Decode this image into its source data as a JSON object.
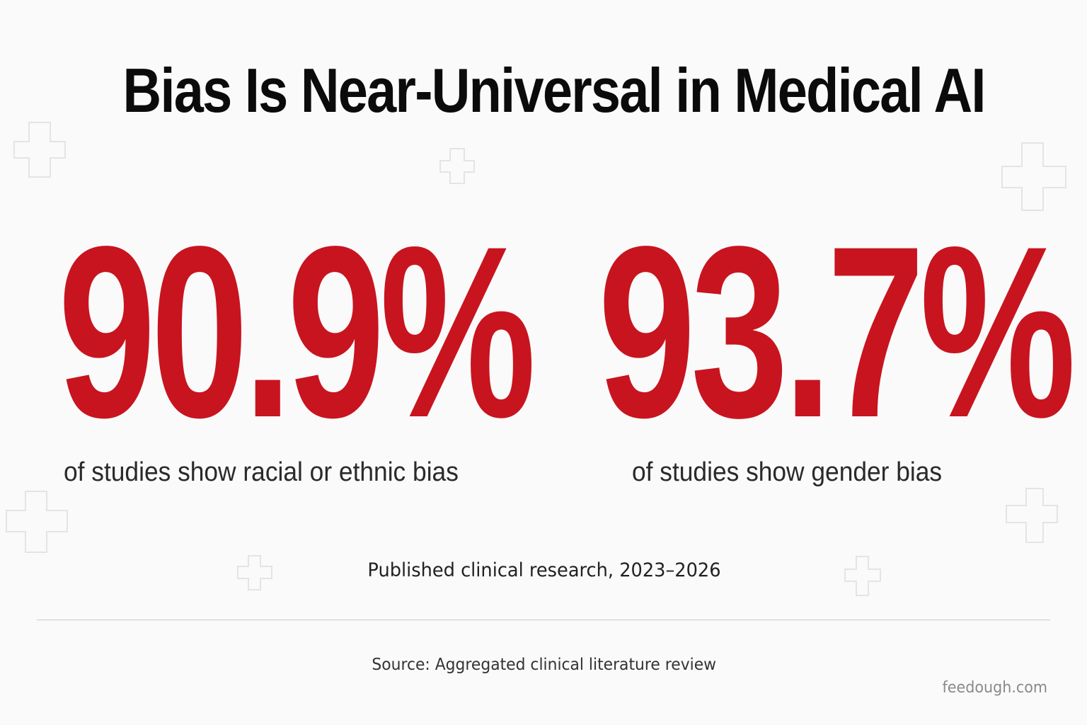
{
  "title": "Bias Is Near-Universal in Medical AI",
  "stats": [
    {
      "value": "90.9%",
      "caption": "of studies show racial or ethnic bias"
    },
    {
      "value": "93.7%",
      "caption": "of studies show gender bias"
    }
  ],
  "published_note": "Published clinical research, 2023–2026",
  "source": "Source: Aggregated clinical literature review",
  "watermark": "feedough.com",
  "colors": {
    "background": "#fafafa",
    "title": "#0b0b0b",
    "stat_accent": "#c8141f",
    "caption": "#2a2a2a",
    "decor_cross": "#e6e6e6"
  },
  "decor_icon": "medical-cross-outline-icon"
}
